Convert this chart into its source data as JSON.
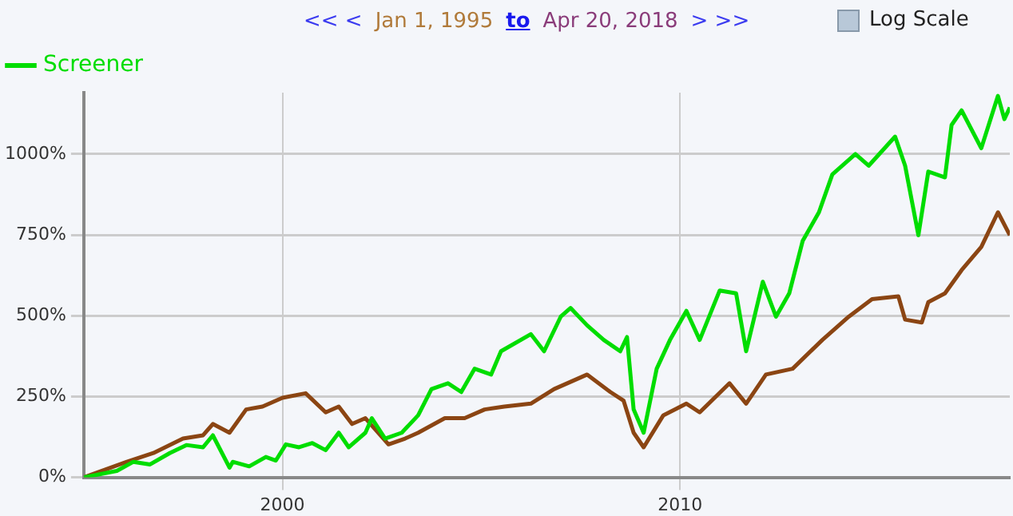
{
  "chart_data": {
    "type": "line",
    "annotations": [
      "<< <",
      "Jan 1, 1995",
      "to",
      "Apr 20, 2018",
      "> >>",
      "Log Scale"
    ],
    "xlim": [
      "1995-01-01",
      "2018-04-20"
    ],
    "xticks": [
      {
        "value": "2000-01-01",
        "label": "2000"
      },
      {
        "value": "2010-01-01",
        "label": "2010"
      }
    ],
    "ylim": [
      0,
      1190
    ],
    "yticks": [
      {
        "value": 0,
        "label": "0%"
      },
      {
        "value": 250,
        "label": "250%"
      },
      {
        "value": 500,
        "label": "500%"
      },
      {
        "value": 750,
        "label": "750%"
      },
      {
        "value": 1000,
        "label": "1000%"
      }
    ],
    "grid": true,
    "legend": "top left",
    "marker": "none",
    "line_style": "solid",
    "series": [
      {
        "name": "Screener",
        "color": "#00dd00",
        "x": [
          "1995-01",
          "1995-11",
          "1996-04",
          "1996-09",
          "1997-03",
          "1997-08",
          "1998-01",
          "1998-04",
          "1998-09",
          "1998-10",
          "1999-03",
          "1999-08",
          "1999-11",
          "2000-02",
          "2000-06",
          "2000-10",
          "2001-02",
          "2001-06",
          "2001-09",
          "2002-02",
          "2002-04",
          "2002-08",
          "2003-01",
          "2003-06",
          "2003-10",
          "2004-03",
          "2004-07",
          "2004-11",
          "2005-04",
          "2005-07",
          "2006-04",
          "2006-08",
          "2007-01",
          "2007-04",
          "2007-09",
          "2008-02",
          "2008-07",
          "2008-09",
          "2008-11",
          "2009-02",
          "2009-06",
          "2009-10",
          "2010-03",
          "2010-07",
          "2011-01",
          "2011-06",
          "2011-09",
          "2012-02",
          "2012-06",
          "2012-10",
          "2013-02",
          "2013-07",
          "2013-11",
          "2014-06",
          "2014-10",
          "2015-06",
          "2015-09",
          "2016-01",
          "2016-04",
          "2016-09",
          "2016-11",
          "2017-02",
          "2017-08",
          "2018-01",
          "2018-03",
          "2018-04-20"
        ],
        "values": [
          0,
          20,
          48,
          40,
          75,
          100,
          93,
          130,
          30,
          48,
          34,
          63,
          52,
          102,
          93,
          106,
          84,
          138,
          93,
          138,
          183,
          120,
          138,
          192,
          273,
          291,
          264,
          336,
          318,
          390,
          443,
          390,
          497,
          524,
          470,
          425,
          390,
          434,
          210,
          138,
          336,
          425,
          515,
          425,
          578,
          569,
          390,
          605,
          497,
          569,
          731,
          820,
          937,
          1000,
          964,
          1054,
          964,
          749,
          946,
          928,
          1090,
          1135,
          1018,
          1180,
          1108,
          1144
        ]
      },
      {
        "color": "#8b4513",
        "x": [
          "1995-01",
          "1996-02",
          "1996-10",
          "1997-07",
          "1998-01",
          "1998-04",
          "1998-09",
          "1999-02",
          "1999-07",
          "2000-01",
          "2000-08",
          "2001-02",
          "2001-06",
          "2001-10",
          "2002-02",
          "2002-09",
          "2003-02",
          "2003-06",
          "2004-02",
          "2004-08",
          "2005-02",
          "2005-08",
          "2006-04",
          "2006-11",
          "2007-09",
          "2008-04",
          "2008-08",
          "2008-11",
          "2009-02",
          "2009-08",
          "2010-03",
          "2010-07",
          "2011-04",
          "2011-09",
          "2012-03",
          "2012-11",
          "2013-08",
          "2014-04",
          "2014-11",
          "2015-07",
          "2015-09",
          "2016-02",
          "2016-04",
          "2016-09",
          "2017-02",
          "2017-08",
          "2018-01",
          "2018-04-20"
        ],
        "values": [
          0,
          48,
          75,
          120,
          130,
          165,
          138,
          210,
          219,
          246,
          260,
          201,
          219,
          165,
          183,
          102,
          120,
          138,
          183,
          183,
          210,
          219,
          228,
          273,
          318,
          264,
          237,
          138,
          93,
          192,
          228,
          201,
          291,
          228,
          318,
          336,
          425,
          497,
          551,
          560,
          488,
          479,
          542,
          569,
          641,
          713,
          820,
          749
        ]
      }
    ]
  }
}
